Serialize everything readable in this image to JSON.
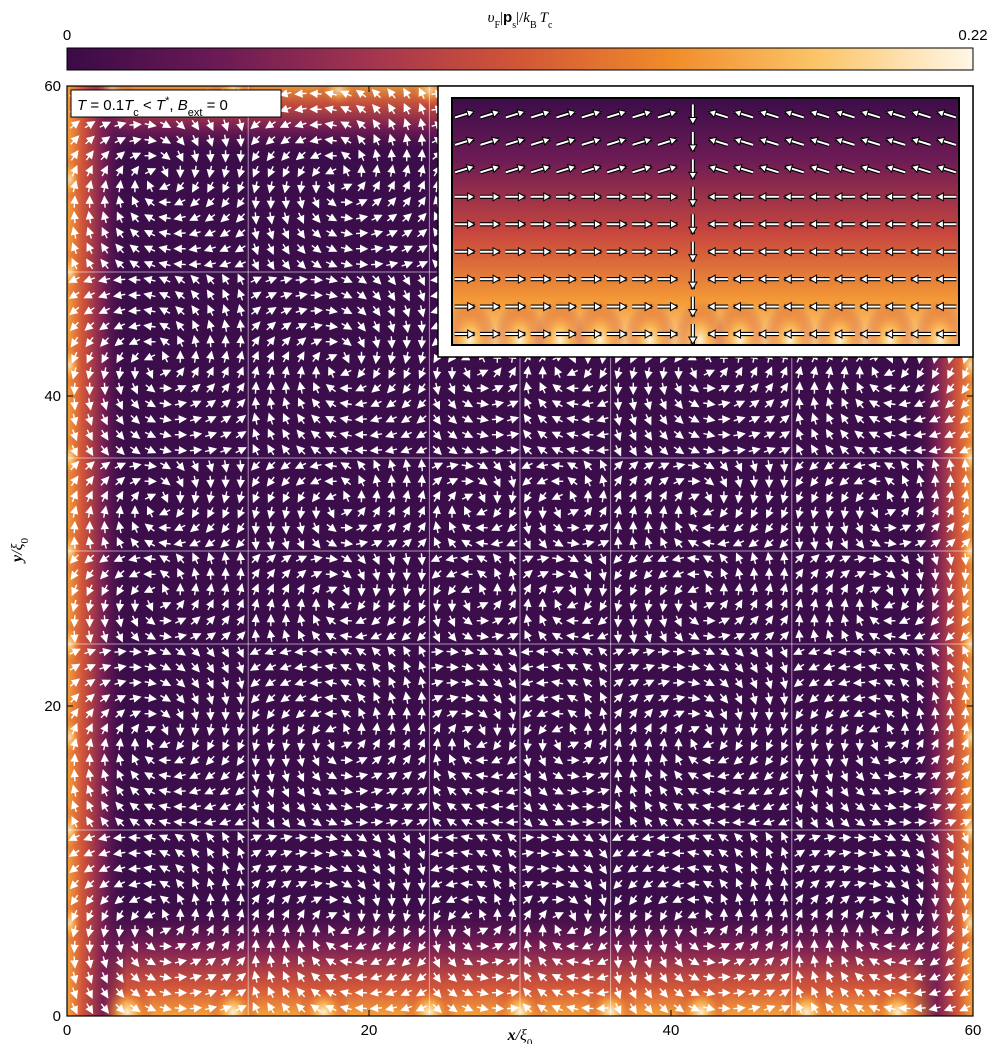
{
  "chart_data": {
    "type": "heatmap",
    "subtype": "vector-field-over-colormap",
    "colorbar": {
      "label_parts": [
        "υ",
        "F",
        "|",
        "p",
        "s",
        "|/",
        "k",
        "B",
        "T",
        "c"
      ],
      "min_label": "0",
      "max_label": "0.22",
      "range": [
        0,
        0.22
      ],
      "colormap": "inferno-like",
      "colors": [
        "#3a0a47",
        "#6b1a55",
        "#a2344f",
        "#d25636",
        "#f08c2a",
        "#fcc66b",
        "#fff7e8"
      ]
    },
    "annotation": {
      "parts": [
        "T",
        " = 0.1",
        "T",
        "c",
        " < ",
        "T",
        "*",
        ", ",
        "B",
        "ext",
        " = 0"
      ]
    },
    "x_axis": {
      "label_main": "x",
      "label_sub": "ξ",
      "label_sub_index": "0",
      "range": [
        0,
        60
      ],
      "ticks": [
        "0",
        "20",
        "40",
        "60"
      ]
    },
    "y_axis": {
      "label_main": "y",
      "label_sub": "ξ",
      "label_sub_index": "0",
      "range": [
        0,
        60
      ],
      "ticks": [
        "0",
        "20",
        "40",
        "60"
      ]
    },
    "grid": false,
    "domain_walls_x": [
      12,
      24,
      30,
      36,
      48
    ],
    "domain_walls_y": [
      12,
      24,
      30,
      36,
      48
    ],
    "arrow_color_main": "#ffffff",
    "arrow_color_inset": "#ffffff",
    "arrow_outline_inset": "#000000",
    "background_color": "#3b0d4a",
    "inset": {
      "description_region": "top edge zoom",
      "x_range": [
        30,
        60
      ],
      "y_range": [
        44,
        60
      ]
    }
  }
}
